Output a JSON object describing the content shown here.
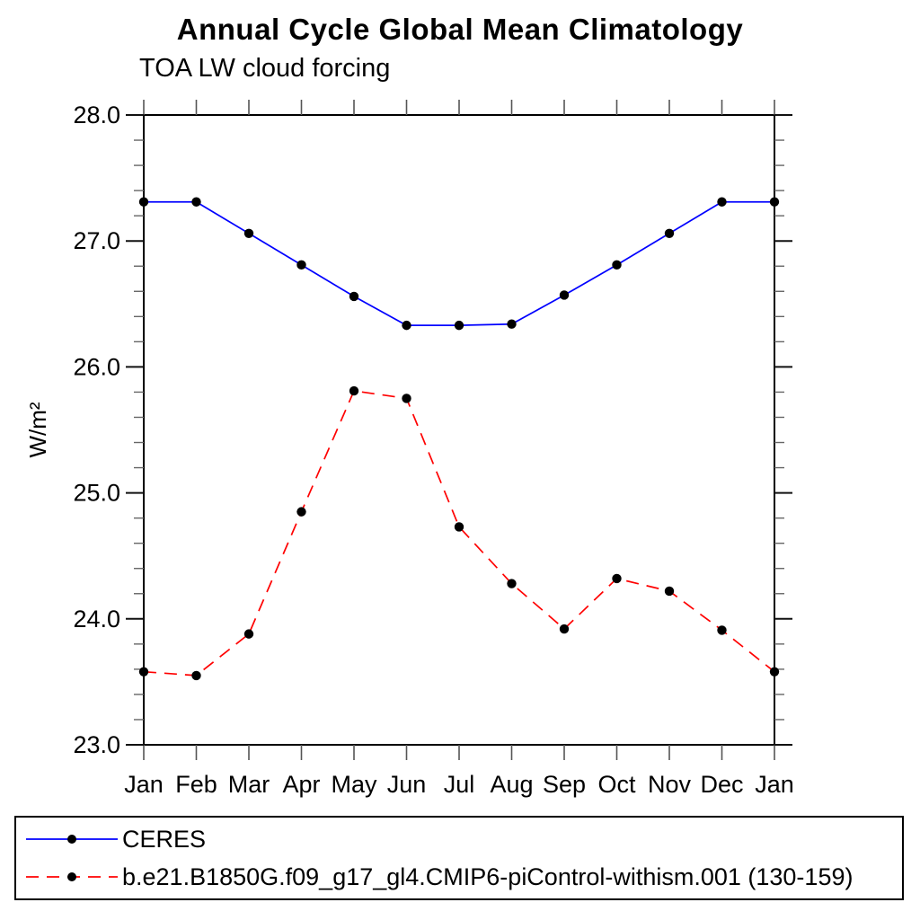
{
  "title": "Annual Cycle Global Mean Climatology",
  "subtitle": "TOA LW cloud forcing",
  "chart_data": {
    "type": "line",
    "categories": [
      "Jan",
      "Feb",
      "Mar",
      "Apr",
      "May",
      "Jun",
      "Jul",
      "Aug",
      "Sep",
      "Oct",
      "Nov",
      "Dec",
      "Jan"
    ],
    "xlabel": "",
    "ylabel": "W/m²",
    "ylim": [
      23.0,
      28.0
    ],
    "ytick_labels": [
      "23.0",
      "24.0",
      "25.0",
      "26.0",
      "27.0",
      "28.0"
    ],
    "ytick_values": [
      23.0,
      24.0,
      25.0,
      26.0,
      27.0,
      28.0
    ],
    "ytick_minor_step": 0.2,
    "grid": false,
    "legend_position": "bottom",
    "frame_color": "#000000",
    "marker_color": "#000000",
    "series": [
      {
        "name": "CERES",
        "color": "#0000ff",
        "line_style": "solid",
        "values": [
          27.31,
          27.31,
          27.06,
          26.81,
          26.56,
          26.33,
          26.33,
          26.34,
          26.57,
          26.81,
          27.06,
          27.31,
          27.31
        ]
      },
      {
        "name": "b.e21.B1850G.f09_g17_gl4.CMIP6-piControl-withism.001 (130-159)",
        "color": "#ff0000",
        "line_style": "dashed",
        "values": [
          23.58,
          23.55,
          23.88,
          24.85,
          25.81,
          25.75,
          24.73,
          24.28,
          23.92,
          24.32,
          24.22,
          23.91,
          23.58
        ]
      }
    ]
  }
}
